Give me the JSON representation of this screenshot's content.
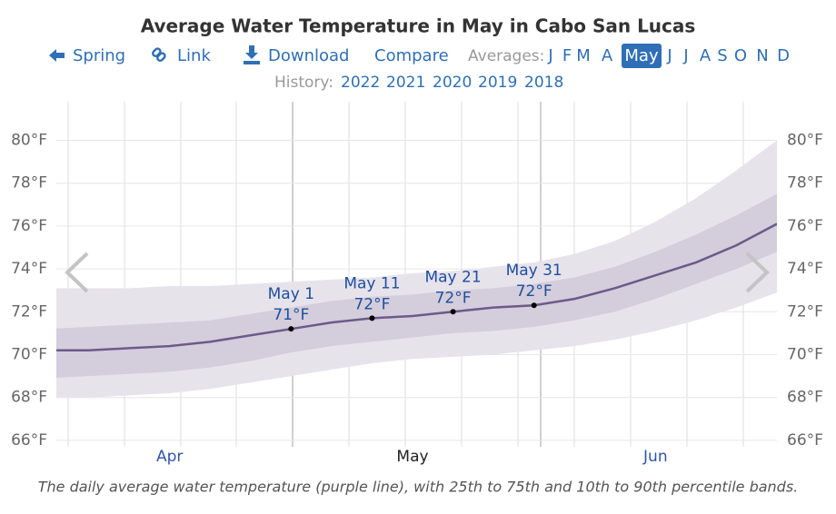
{
  "chart_data": {
    "type": "line",
    "title": "Average Water Temperature in May in Cabo San Lucas",
    "nav": {
      "items": [
        "Spring",
        "Link",
        "Download",
        "Compare"
      ],
      "averages_label": "Averages:",
      "months": [
        "J",
        "F",
        "M",
        "A",
        "May",
        "J",
        "J",
        "A",
        "S",
        "O",
        "N",
        "D"
      ],
      "selected_month": "May",
      "history_label": "History:",
      "history": [
        "2022",
        "2021",
        "2020",
        "2019",
        "2018"
      ]
    },
    "categories": [
      null,
      null,
      null,
      "Apr",
      null,
      null,
      null,
      null,
      null,
      "May",
      null,
      null,
      null,
      null,
      null,
      "Jun",
      null,
      null,
      null
    ],
    "ylim": [
      65.7,
      81.8
    ],
    "yticks": [
      {
        "value": 66,
        "label": "66°F"
      },
      {
        "value": 68,
        "label": "68°F"
      },
      {
        "value": 70,
        "label": "70°F"
      },
      {
        "value": 72,
        "label": "72°F"
      },
      {
        "value": 74,
        "label": "74°F"
      },
      {
        "value": 76,
        "label": "76°F"
      },
      {
        "value": 78,
        "label": "78°F"
      },
      {
        "value": 80,
        "label": "80°F"
      }
    ],
    "grid": true,
    "bands": [
      {
        "color": "#e7e3eb",
        "upper": [
          73.1,
          73.1,
          73.1,
          73.2,
          73.2,
          73.3,
          73.4,
          73.5,
          73.6,
          73.8,
          73.9,
          74.1,
          74.3,
          74.7,
          75.3,
          76.2,
          77.3,
          78.6,
          80.0
        ],
        "lower": [
          68.0,
          68.0,
          68.1,
          68.2,
          68.4,
          68.7,
          69.0,
          69.3,
          69.6,
          69.8,
          69.9,
          70.0,
          70.2,
          70.4,
          70.7,
          71.1,
          71.6,
          72.2,
          72.9
        ]
      },
      {
        "color": "#d4cddb",
        "upper": [
          71.2,
          71.3,
          71.4,
          71.5,
          71.6,
          71.9,
          72.2,
          72.5,
          72.7,
          72.8,
          73.0,
          73.1,
          73.3,
          73.6,
          74.1,
          74.8,
          75.6,
          76.5,
          77.5
        ],
        "lower": [
          68.9,
          69.0,
          69.1,
          69.2,
          69.4,
          69.7,
          70.1,
          70.4,
          70.6,
          70.8,
          71.0,
          71.1,
          71.3,
          71.6,
          72.0,
          72.6,
          73.3,
          74.0,
          74.8
        ]
      }
    ],
    "series": [
      {
        "color": "#6b5a8a",
        "values": [
          70.2,
          70.2,
          70.3,
          70.4,
          70.6,
          70.9,
          71.2,
          71.5,
          71.7,
          71.8,
          72.0,
          72.2,
          72.3,
          72.6,
          73.1,
          73.7,
          74.3,
          75.1,
          76.1
        ],
        "point_labels": [
          null,
          null,
          null,
          null,
          null,
          null,
          "May 1",
          null,
          "May 11",
          null,
          "May 21",
          null,
          "May 31",
          null,
          null,
          null,
          null,
          null,
          null
        ],
        "value_labels": [
          null,
          null,
          null,
          null,
          null,
          null,
          "71°F",
          null,
          "72°F",
          null,
          "72°F",
          null,
          "72°F",
          null,
          null,
          null,
          null,
          null,
          null
        ]
      }
    ],
    "caption": "The daily average water temperature (purple line), with 25th to 75th and 10th to 90th percentile bands."
  }
}
